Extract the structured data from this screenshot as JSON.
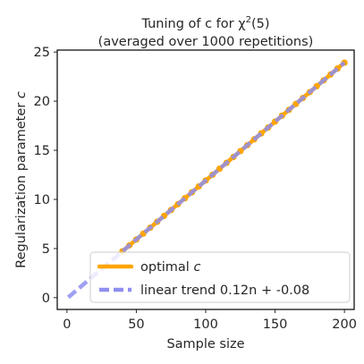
{
  "chart_data": {
    "type": "line",
    "title_line1": "Tuning of c for χ",
    "title_sup": "2",
    "title_line1_tail": "(5)",
    "title_line2": "(averaged over 1000 repetitions)",
    "xlabel": "Sample size",
    "ylabel_prefix": "Regularization parameter ",
    "ylabel_italic": "c",
    "xlim": [
      -7,
      207
    ],
    "ylim": [
      -1.2,
      25.2
    ],
    "xticks": [
      0,
      50,
      100,
      150,
      200
    ],
    "xtick_labels": [
      "0",
      "50",
      "100",
      "150",
      "200"
    ],
    "yticks": [
      0,
      5,
      10,
      15,
      20,
      25
    ],
    "ytick_labels": [
      "0",
      "5",
      "10",
      "15",
      "20",
      "25"
    ],
    "grid": false,
    "legend_position": "bottom-right",
    "series": [
      {
        "name": "optimal c",
        "name_prefix": "optimal ",
        "name_italic": "c",
        "color": "#ffa500",
        "style": "solid-with-markers",
        "x": [
          40,
          45,
          50,
          55,
          60,
          65,
          70,
          75,
          80,
          85,
          90,
          95,
          100,
          105,
          110,
          115,
          120,
          125,
          130,
          135,
          140,
          145,
          150,
          155,
          160,
          165,
          170,
          175,
          180,
          185,
          190,
          195,
          200
        ],
        "y": [
          4.72,
          5.32,
          5.92,
          6.52,
          7.12,
          7.72,
          8.32,
          8.92,
          9.52,
          10.12,
          10.72,
          11.32,
          11.92,
          12.52,
          13.12,
          13.72,
          14.32,
          14.92,
          15.52,
          16.12,
          16.72,
          17.32,
          17.92,
          18.52,
          19.12,
          19.72,
          20.32,
          20.92,
          21.52,
          22.12,
          22.72,
          23.32,
          23.92
        ]
      },
      {
        "name": "linear trend 0.12n + -0.08",
        "color": "#8f8ff0",
        "style": "dashed",
        "slope": 0.12,
        "intercept": -0.08,
        "x": [
          1,
          200
        ]
      }
    ]
  }
}
